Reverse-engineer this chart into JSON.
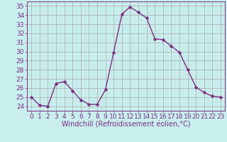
{
  "x": [
    0,
    1,
    2,
    3,
    4,
    5,
    6,
    7,
    8,
    9,
    10,
    11,
    12,
    13,
    14,
    15,
    16,
    17,
    18,
    19,
    20,
    21,
    22,
    23
  ],
  "y": [
    25.0,
    24.1,
    24.0,
    26.5,
    26.7,
    25.7,
    24.7,
    24.2,
    24.2,
    25.8,
    29.9,
    34.1,
    34.9,
    34.3,
    33.7,
    31.4,
    31.3,
    30.6,
    29.9,
    28.0,
    26.1,
    25.5,
    25.1,
    25.0
  ],
  "line_color": "#7b3080",
  "marker": "D",
  "markersize": 2.5,
  "linewidth": 1.0,
  "bg_color": "#c8eeee",
  "grid_color_major": "#aaaaaa",
  "grid_color_minor": "#ccdddd",
  "xlabel": "Windchill (Refroidissement éolien,°C)",
  "xlabel_color": "#7b3080",
  "xlabel_fontsize": 7,
  "tick_color": "#7b3080",
  "tick_fontsize": 6.5,
  "ylim": [
    23.5,
    35.5
  ],
  "xlim": [
    -0.5,
    23.5
  ],
  "yticks": [
    24,
    25,
    26,
    27,
    28,
    29,
    30,
    31,
    32,
    33,
    34,
    35
  ],
  "xticks": [
    0,
    1,
    2,
    3,
    4,
    5,
    6,
    7,
    8,
    9,
    10,
    11,
    12,
    13,
    14,
    15,
    16,
    17,
    18,
    19,
    20,
    21,
    22,
    23
  ]
}
